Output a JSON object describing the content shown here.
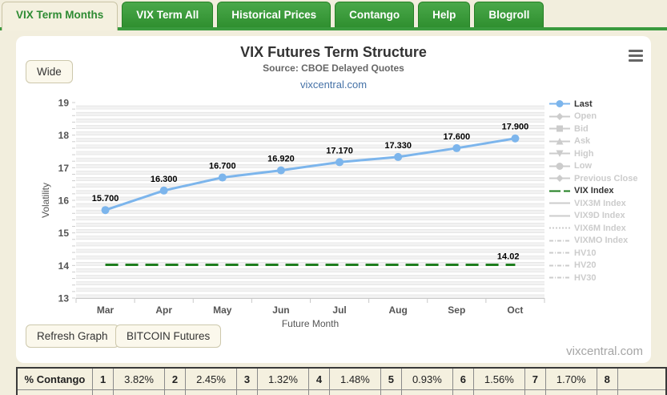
{
  "tabs": [
    {
      "label": "VIX Term Months",
      "active": true
    },
    {
      "label": "VIX Term All",
      "active": false
    },
    {
      "label": "Historical Prices",
      "active": false
    },
    {
      "label": "Contango",
      "active": false
    },
    {
      "label": "Help",
      "active": false
    },
    {
      "label": "Blogroll",
      "active": false
    }
  ],
  "chart": {
    "wide_button": "Wide",
    "watermark_link": "vixcentral.com"
  },
  "chart_data": {
    "type": "line",
    "title": "VIX Futures Term Structure",
    "subtitle": "Source: CBOE Delayed Quotes",
    "xlabel": "Future Month",
    "ylabel": "Volatility",
    "ylim": [
      13,
      19
    ],
    "y_ticks": [
      13,
      14,
      15,
      16,
      17,
      18,
      19
    ],
    "categories": [
      "Mar",
      "Apr",
      "May",
      "Jun",
      "Jul",
      "Aug",
      "Sep",
      "Oct"
    ],
    "grid": "horizontal-bands",
    "legend_position": "right",
    "series": [
      {
        "name": "Last",
        "kind": "line",
        "color": "#7cb5ec",
        "marker": "circle",
        "values": [
          15.7,
          16.3,
          16.7,
          16.92,
          17.17,
          17.33,
          17.6,
          17.9
        ],
        "labels": [
          "15.700",
          "16.300",
          "16.700",
          "16.920",
          "17.170",
          "17.330",
          "17.600",
          "17.900"
        ]
      },
      {
        "name": "VIX Index",
        "kind": "hline",
        "color": "#1e7d1e",
        "dash": "dashed",
        "value": 14.02,
        "label": "14.02"
      }
    ]
  },
  "legend": {
    "items": [
      {
        "label": "Last",
        "marker": "circle",
        "dash": "solid",
        "color": "#7cb5ec",
        "active": true
      },
      {
        "label": "Open",
        "marker": "diamond",
        "dash": "solid",
        "color": "#cccccc",
        "active": false
      },
      {
        "label": "Bid",
        "marker": "square",
        "dash": "solid",
        "color": "#cccccc",
        "active": false
      },
      {
        "label": "Ask",
        "marker": "triangle",
        "dash": "solid",
        "color": "#cccccc",
        "active": false
      },
      {
        "label": "High",
        "marker": "triangle-down",
        "dash": "solid",
        "color": "#cccccc",
        "active": false
      },
      {
        "label": "Low",
        "marker": "circle",
        "dash": "solid",
        "color": "#cccccc",
        "active": false
      },
      {
        "label": "Previous Close",
        "marker": "diamond",
        "dash": "solid",
        "color": "#cccccc",
        "active": false
      },
      {
        "label": "VIX Index",
        "marker": "none",
        "dash": "dash",
        "color": "#1e7d1e",
        "active": true
      },
      {
        "label": "VIX3M Index",
        "marker": "none",
        "dash": "solid",
        "color": "#cccccc",
        "active": false
      },
      {
        "label": "VIX9D Index",
        "marker": "none",
        "dash": "solid",
        "color": "#cccccc",
        "active": false
      },
      {
        "label": "VIX6M Index",
        "marker": "none",
        "dash": "dotted",
        "color": "#cccccc",
        "active": false
      },
      {
        "label": "VIXMO Index",
        "marker": "none",
        "dash": "dashdot",
        "color": "#cccccc",
        "active": false
      },
      {
        "label": "HV10",
        "marker": "none",
        "dash": "dashdot",
        "color": "#cccccc",
        "active": false
      },
      {
        "label": "HV20",
        "marker": "none",
        "dash": "dashdot",
        "color": "#cccccc",
        "active": false
      },
      {
        "label": "HV30",
        "marker": "none",
        "dash": "dashdot",
        "color": "#cccccc",
        "active": false
      }
    ]
  },
  "buttons": {
    "refresh": "Refresh Graph",
    "bitcoin": "BITCOIN Futures"
  },
  "footer": {
    "brand": "vixcentral.com"
  },
  "contango": {
    "label": "% Contango",
    "pairs": [
      {
        "n": "1",
        "v": "3.82%"
      },
      {
        "n": "2",
        "v": "2.45%"
      },
      {
        "n": "3",
        "v": "1.32%"
      },
      {
        "n": "4",
        "v": "1.48%"
      },
      {
        "n": "5",
        "v": "0.93%"
      },
      {
        "n": "6",
        "v": "1.56%"
      },
      {
        "n": "7",
        "v": "1.70%"
      },
      {
        "n": "8",
        "v": ""
      }
    ]
  },
  "colors": {
    "tab_green": "#3a9a3e",
    "line_blue": "#7cb5ec",
    "vix_green": "#1e7d1e",
    "inactive_gray": "#cccccc",
    "page_bg": "#f2eedd"
  }
}
